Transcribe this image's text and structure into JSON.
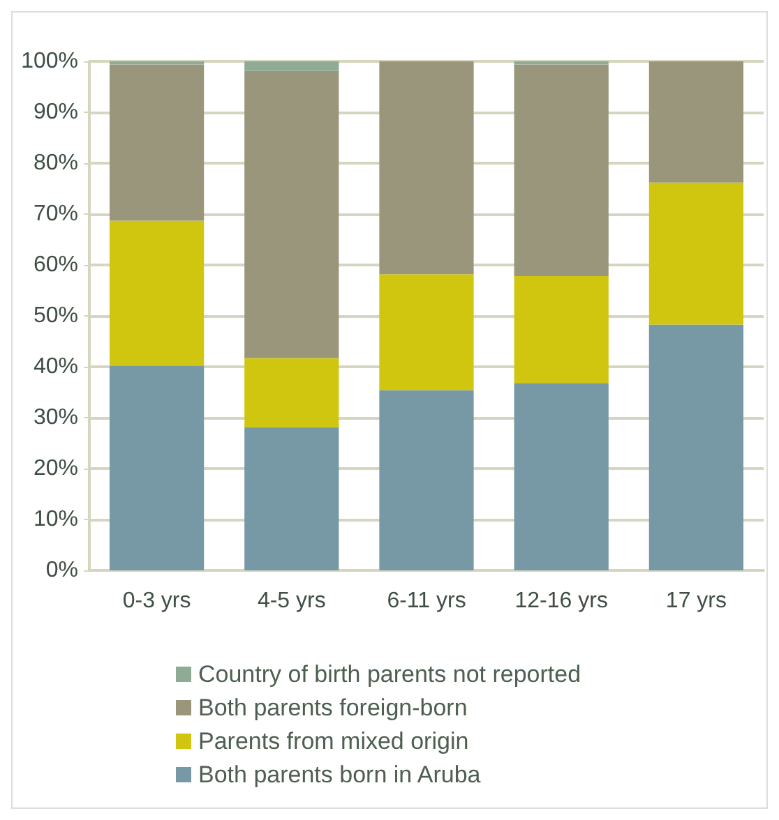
{
  "chart_data": {
    "type": "bar",
    "stacked": true,
    "categories": [
      "0-3 yrs",
      "4-5 yrs",
      "6-11 yrs",
      "12-16 yrs",
      "17 yrs"
    ],
    "series": [
      {
        "name": "Both parents born in Aruba",
        "color": "#7799a5",
        "values": [
          40.2,
          28.1,
          35.4,
          36.8,
          48.3
        ]
      },
      {
        "name": "Parents from mixed origin",
        "color": "#d0c60f",
        "values": [
          28.5,
          13.6,
          22.8,
          21.0,
          27.9
        ]
      },
      {
        "name": "Both parents foreign-born",
        "color": "#99967c",
        "values": [
          30.7,
          56.4,
          41.8,
          41.6,
          23.8
        ]
      },
      {
        "name": "Country of birth parents not reported",
        "color": "#8fab94",
        "values": [
          0.6,
          1.9,
          0,
          0.6,
          0
        ]
      }
    ],
    "ylim": [
      0,
      100
    ],
    "yticks": [
      {
        "value": 0,
        "label": "0%"
      },
      {
        "value": 10,
        "label": "10%"
      },
      {
        "value": 20,
        "label": "20%"
      },
      {
        "value": 30,
        "label": "30%"
      },
      {
        "value": 40,
        "label": "40%"
      },
      {
        "value": 50,
        "label": "50%"
      },
      {
        "value": 60,
        "label": "60%"
      },
      {
        "value": 70,
        "label": "70%"
      },
      {
        "value": 80,
        "label": "80%"
      },
      {
        "value": 90,
        "label": "90%"
      },
      {
        "value": 100,
        "label": "100%"
      }
    ],
    "grid": "y",
    "legend": "bottom"
  }
}
